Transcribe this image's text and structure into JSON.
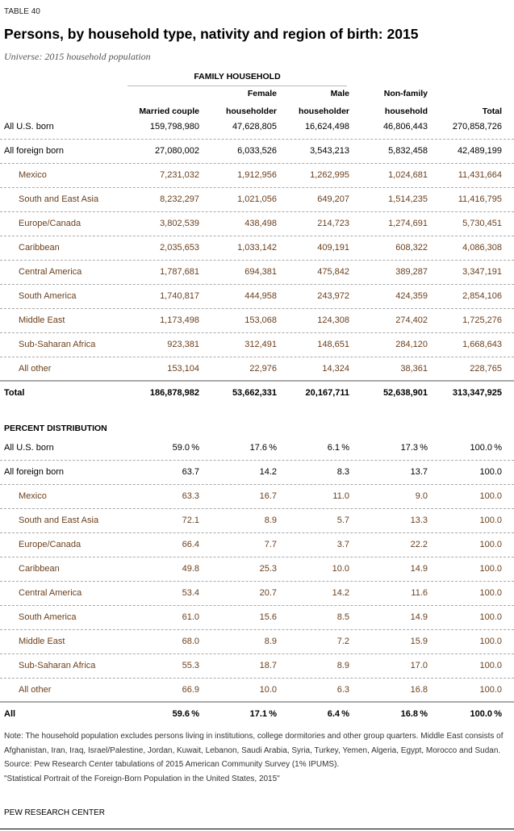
{
  "label": "TABLE 40",
  "title": "Persons, by household type, nativity and region of birth: 2015",
  "universe": "Universe: 2015 household population",
  "family_header": "FAMILY HOUSEHOLD",
  "columns": [
    [
      "",
      "Married couple"
    ],
    [
      "Female",
      "householder"
    ],
    [
      "Male",
      "householder"
    ],
    [
      "Non-family",
      "household"
    ],
    [
      "",
      "Total"
    ]
  ],
  "counts": [
    {
      "name": "All U.S. born",
      "type": "main",
      "values": [
        "159,798,980",
        "47,628,805",
        "16,624,498",
        "46,806,443",
        "270,858,726"
      ]
    },
    {
      "name": "All foreign born",
      "type": "main",
      "values": [
        "27,080,002",
        "6,033,526",
        "3,543,213",
        "5,832,458",
        "42,489,199"
      ]
    },
    {
      "name": "Mexico",
      "type": "sub",
      "values": [
        "7,231,032",
        "1,912,956",
        "1,262,995",
        "1,024,681",
        "11,431,664"
      ]
    },
    {
      "name": "South and East Asia",
      "type": "sub",
      "values": [
        "8,232,297",
        "1,021,056",
        "649,207",
        "1,514,235",
        "11,416,795"
      ]
    },
    {
      "name": "Europe/Canada",
      "type": "sub",
      "values": [
        "3,802,539",
        "438,498",
        "214,723",
        "1,274,691",
        "5,730,451"
      ]
    },
    {
      "name": "Caribbean",
      "type": "sub",
      "values": [
        "2,035,653",
        "1,033,142",
        "409,191",
        "608,322",
        "4,086,308"
      ]
    },
    {
      "name": "Central America",
      "type": "sub",
      "values": [
        "1,787,681",
        "694,381",
        "475,842",
        "389,287",
        "3,347,191"
      ]
    },
    {
      "name": "South America",
      "type": "sub",
      "values": [
        "1,740,817",
        "444,958",
        "243,972",
        "424,359",
        "2,854,106"
      ]
    },
    {
      "name": "Middle East",
      "type": "sub",
      "values": [
        "1,173,498",
        "153,068",
        "124,308",
        "274,402",
        "1,725,276"
      ]
    },
    {
      "name": "Sub-Saharan Africa",
      "type": "sub",
      "values": [
        "923,381",
        "312,491",
        "148,651",
        "284,120",
        "1,668,643"
      ]
    },
    {
      "name": "All other",
      "type": "sub sep",
      "values": [
        "153,104",
        "22,976",
        "14,324",
        "38,361",
        "228,765"
      ]
    },
    {
      "name": "Total",
      "type": "bold",
      "values": [
        "186,878,982",
        "53,662,331",
        "20,167,711",
        "52,638,901",
        "313,347,925"
      ]
    }
  ],
  "percent_header": "PERCENT DISTRIBUTION",
  "percent_suffix": "%",
  "percents": [
    {
      "name": "All U.S. born",
      "type": "main",
      "pct": true,
      "values": [
        "59.0",
        "17.6",
        "6.1",
        "17.3",
        "100.0"
      ]
    },
    {
      "name": "All foreign born",
      "type": "main",
      "values": [
        "63.7",
        "14.2",
        "8.3",
        "13.7",
        "100.0"
      ]
    },
    {
      "name": "Mexico",
      "type": "sub",
      "values": [
        "63.3",
        "16.7",
        "11.0",
        "9.0",
        "100.0"
      ]
    },
    {
      "name": "South and East Asia",
      "type": "sub",
      "values": [
        "72.1",
        "8.9",
        "5.7",
        "13.3",
        "100.0"
      ]
    },
    {
      "name": "Europe/Canada",
      "type": "sub",
      "values": [
        "66.4",
        "7.7",
        "3.7",
        "22.2",
        "100.0"
      ]
    },
    {
      "name": "Caribbean",
      "type": "sub",
      "values": [
        "49.8",
        "25.3",
        "10.0",
        "14.9",
        "100.0"
      ]
    },
    {
      "name": "Central America",
      "type": "sub",
      "values": [
        "53.4",
        "20.7",
        "14.2",
        "11.6",
        "100.0"
      ]
    },
    {
      "name": "South America",
      "type": "sub",
      "values": [
        "61.0",
        "15.6",
        "8.5",
        "14.9",
        "100.0"
      ]
    },
    {
      "name": "Middle East",
      "type": "sub",
      "values": [
        "68.0",
        "8.9",
        "7.2",
        "15.9",
        "100.0"
      ]
    },
    {
      "name": "Sub-Saharan Africa",
      "type": "sub",
      "values": [
        "55.3",
        "18.7",
        "8.9",
        "17.0",
        "100.0"
      ]
    },
    {
      "name": "All other",
      "type": "sub sep",
      "values": [
        "66.9",
        "10.0",
        "6.3",
        "16.8",
        "100.0"
      ]
    },
    {
      "name": "All",
      "type": "bold",
      "pct": true,
      "values": [
        "59.6",
        "17.1",
        "6.4",
        "16.8",
        "100.0"
      ]
    }
  ],
  "notes": [
    "Note: The household population excludes persons living in institutions, college dormitories and other group quarters. Middle East consists of Afghanistan, Iran, Iraq, Israel/Palestine, Jordan, Kuwait, Lebanon, Saudi Arabia, Syria, Turkey, Yemen, Algeria, Egypt, Morocco and Sudan.",
    "Source: Pew Research Center tabulations of 2015 American Community Survey (1% IPUMS).",
    "\"Statistical Portrait of the Foreign-Born Population in the United States, 2015\""
  ],
  "footer": "PEW RESEARCH CENTER"
}
